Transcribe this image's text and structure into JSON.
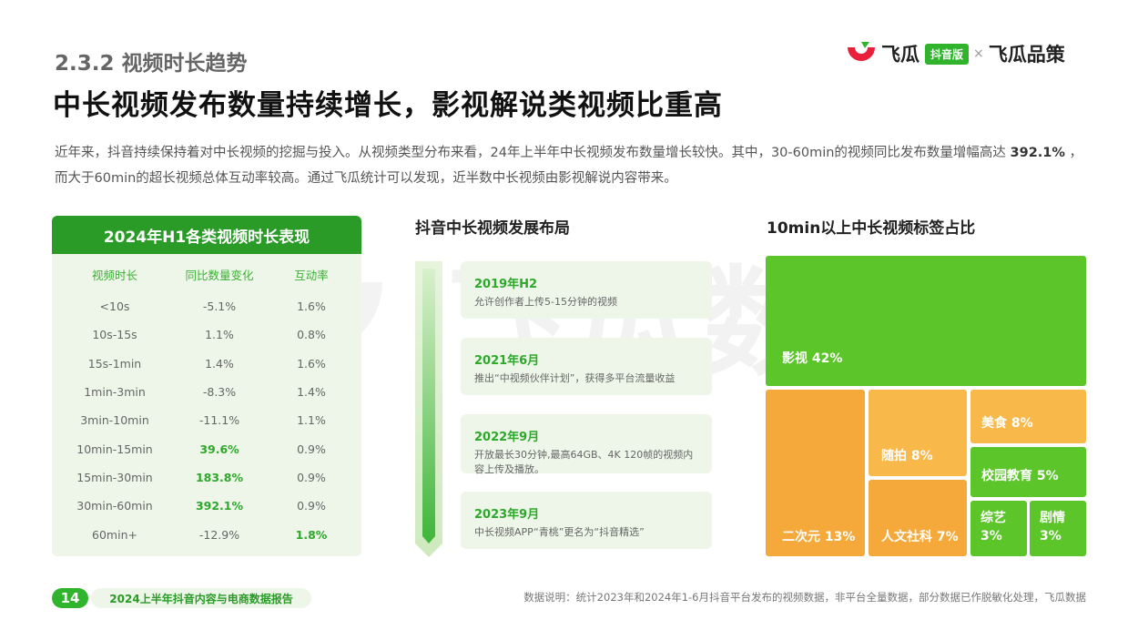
{
  "header": {
    "section": "2.3.2 视频时长趋势",
    "title": "中长视频发布数量持续增长，影视解说类视频比重高",
    "intro_1": "近年来，抖音持续保持着对中长视频的挖掘与投入。从视频类型分布来看，24年上半年中长视频发布数量增长较快。其中，30-60min的视频同比发布数量增幅高达 ",
    "intro_highlight": "392.1%",
    "intro_2": " ，而大于60min的超长视频总体互动率较高。通过飞瓜统计可以发现，近半数中长视频由影视解说内容带来。"
  },
  "logo": {
    "brand": "飞瓜",
    "badge": "抖音版",
    "separator": "×",
    "partner": "飞瓜品策"
  },
  "watermark": {
    "text": "飞瓜数据"
  },
  "table": {
    "title": "2024年H1各类视频时长表现",
    "columns": [
      "视频时长",
      "同比数量变化",
      "互动率"
    ],
    "rows": [
      {
        "duration": "<10s",
        "change": "-5.1%",
        "rate": "1.6%",
        "hi_change": false,
        "hi_rate": false
      },
      {
        "duration": "10s-15s",
        "change": "1.1%",
        "rate": "0.8%",
        "hi_change": false,
        "hi_rate": false
      },
      {
        "duration": "15s-1min",
        "change": "1.4%",
        "rate": "1.6%",
        "hi_change": false,
        "hi_rate": false
      },
      {
        "duration": "1min-3min",
        "change": "-8.3%",
        "rate": "1.4%",
        "hi_change": false,
        "hi_rate": false
      },
      {
        "duration": "3min-10min",
        "change": "-11.1%",
        "rate": "1.1%",
        "hi_change": false,
        "hi_rate": false
      },
      {
        "duration": "10min-15min",
        "change": "39.6%",
        "rate": "0.9%",
        "hi_change": true,
        "hi_rate": false
      },
      {
        "duration": "15min-30min",
        "change": "183.8%",
        "rate": "0.9%",
        "hi_change": true,
        "hi_rate": false
      },
      {
        "duration": "30min-60min",
        "change": "392.1%",
        "rate": "0.9%",
        "hi_change": true,
        "hi_rate": false
      },
      {
        "duration": "60min+",
        "change": "-12.9%",
        "rate": "1.8%",
        "hi_change": false,
        "hi_rate": true
      }
    ]
  },
  "timeline": {
    "title": "抖音中长视频发展布局",
    "events": [
      {
        "date": "2019年H2",
        "desc": "允许创作者上传5-15分钟的视频"
      },
      {
        "date": "2021年6月",
        "desc": "推出“中视频伙伴计划”，获得多平台流量收益"
      },
      {
        "date": "2022年9月",
        "desc": "开放最长30分钟,最高64GB、4K 120帧的视频内容上传及播放。"
      },
      {
        "date": "2023年9月",
        "desc": "中长视频APP“青桃”更名为“抖音精选”"
      }
    ]
  },
  "chart_data": {
    "type": "treemap",
    "title": "10min以上中长视频标签占比",
    "categories": [
      "影视",
      "二次元",
      "随拍",
      "人文社科",
      "美食",
      "校园教育",
      "综艺",
      "剧情"
    ],
    "values": [
      42,
      13,
      8,
      7,
      8,
      5,
      3,
      3
    ],
    "labels": [
      "影视 42%",
      "二次元 13%",
      "随拍 8%",
      "人文社科 7%",
      "美食 8%",
      "校园教育 5%",
      "综艺",
      "剧情"
    ],
    "sublabels": [
      "",
      "",
      "",
      "",
      "",
      "",
      "3%",
      "3%"
    ],
    "colors": [
      "#5bc52a",
      "#f6a93b",
      "#f8b84a",
      "#f6a93b",
      "#f8b84a",
      "#5bc52a",
      "#5bc52a",
      "#5bc52a"
    ]
  },
  "footer": {
    "page": "14",
    "report": "2024上半年抖音内容与电商数据报告",
    "note": "数据说明：统计2023年和2024年1-6月抖音平台发布的视频数据，非平台全量数据，部分数据已作脱敏化处理，飞瓜数据"
  }
}
